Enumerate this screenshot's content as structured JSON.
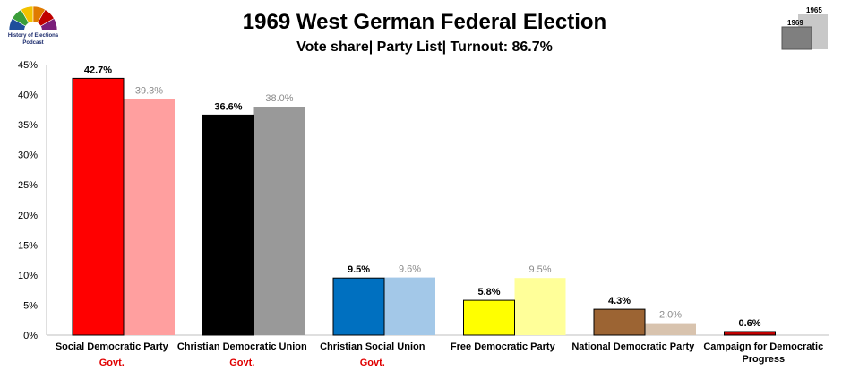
{
  "header": {
    "title": "1969 West German Federal Election",
    "subtitle": "Vote share| Party List| Turnout: 86.7%"
  },
  "logo": {
    "line1": "History of Elections",
    "line2": "Podcast",
    "colors": [
      "#1f4e9c",
      "#3a9d3a",
      "#f2c200",
      "#e07b00",
      "#c00000",
      "#7a1f7a"
    ]
  },
  "legend": {
    "current": "1969",
    "previous": "1965",
    "current_color": "#7f7f7f",
    "previous_color": "#c8c8c8"
  },
  "chart_data": {
    "type": "bar",
    "ylim": [
      0,
      45
    ],
    "yticks": [
      "0%",
      "5%",
      "10%",
      "15%",
      "20%",
      "25%",
      "30%",
      "35%",
      "40%",
      "45%"
    ],
    "categories": [
      "Social Democratic Party",
      "Christian Democratic Union",
      "Christian Social Union",
      "Free Democratic Party",
      "National Democratic Party",
      "Campaign for Democratic Progress"
    ],
    "notes": [
      "Govt.",
      "Govt.",
      "Govt.",
      "",
      "",
      ""
    ],
    "series": [
      {
        "name": "1969",
        "values": [
          42.7,
          36.6,
          9.5,
          5.8,
          4.3,
          0.6
        ],
        "labels": [
          "42.7%",
          "36.6%",
          "9.5%",
          "5.8%",
          "4.3%",
          "0.6%"
        ],
        "colors": [
          "#ff0000",
          "#000000",
          "#0070c0",
          "#ffff00",
          "#9c6433",
          "#c00000"
        ]
      },
      {
        "name": "1965",
        "values": [
          39.3,
          38.0,
          9.6,
          9.5,
          2.0,
          null
        ],
        "labels": [
          "39.3%",
          "38.0%",
          "9.6%",
          "9.5%",
          "2.0%",
          ""
        ],
        "colors": [
          "#ff9f9f",
          "#999999",
          "#a3c8e8",
          "#ffff99",
          "#d8c3ae",
          "#ffffff"
        ]
      }
    ],
    "grid": false,
    "legend_position": "top-right"
  }
}
